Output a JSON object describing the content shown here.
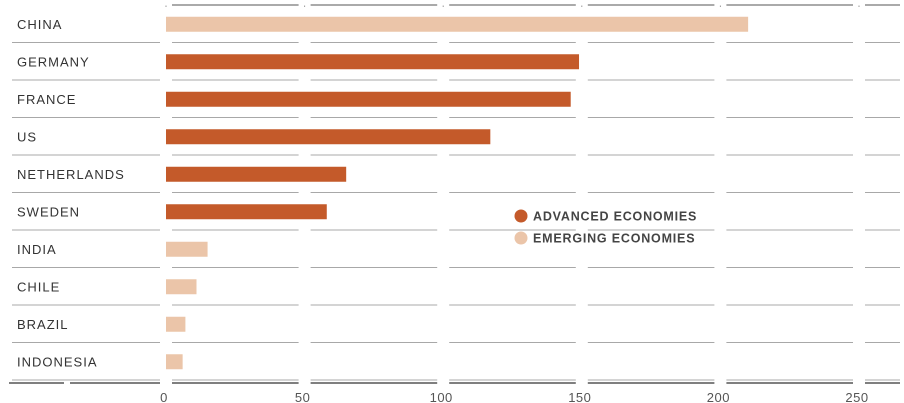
{
  "chart_data": {
    "type": "bar",
    "orientation": "horizontal",
    "categories": [
      "CHINA",
      "GERMANY",
      "FRANCE",
      "US",
      "NETHERLANDS",
      "SWEDEN",
      "INDIA",
      "CHILE",
      "BRAZIL",
      "INDONESIA"
    ],
    "values": [
      210,
      149,
      146,
      117,
      65,
      58,
      15,
      11,
      7,
      6
    ],
    "groups": [
      "EMERGING ECONOMIES",
      "ADVANCED ECONOMIES",
      "ADVANCED ECONOMIES",
      "ADVANCED ECONOMIES",
      "ADVANCED ECONOMIES",
      "ADVANCED ECONOMIES",
      "EMERGING ECONOMIES",
      "EMERGING ECONOMIES",
      "EMERGING ECONOMIES",
      "EMERGING ECONOMIES"
    ],
    "xlim": [
      0,
      250
    ],
    "xticks": [
      0,
      50,
      100,
      150,
      200,
      250
    ],
    "grid": true,
    "legend_position": "center-right",
    "legend": [
      {
        "name": "ADVANCED ECONOMIES",
        "color": "#c45a2a"
      },
      {
        "name": "EMERGING ECONOMIES",
        "color": "#ebc5a9"
      }
    ]
  }
}
